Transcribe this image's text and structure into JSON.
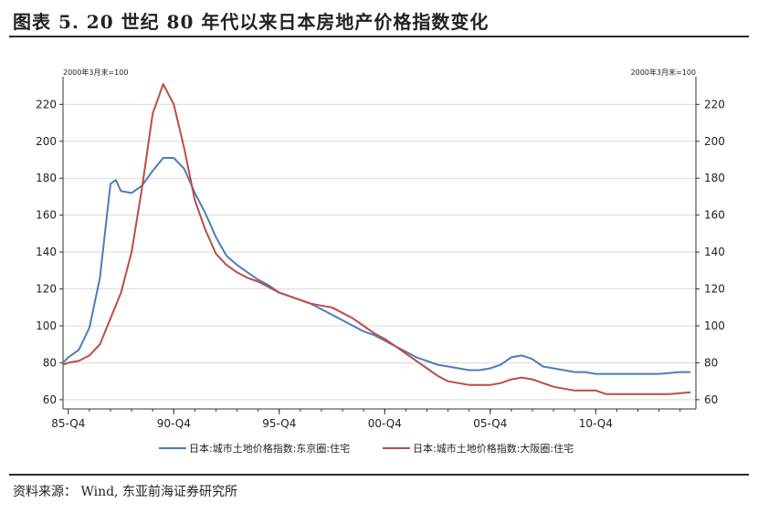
{
  "header": {
    "title": "图表 5.   20 世纪 80 年代以来日本房地产价格指数变化"
  },
  "footer": {
    "source": "资料来源：  Wind,  东亚前海证券研究所"
  },
  "colors": {
    "tokyo": "#4a7ebb",
    "osaka": "#be4b48",
    "grid": "#d9d9d9",
    "axis": "#333333"
  },
  "chart_data": {
    "type": "line",
    "y_unit_left": "2000年3月末=100",
    "y_unit_right": "2000年3月末=100",
    "ylim": [
      55,
      235
    ],
    "yticks": [
      60,
      80,
      100,
      120,
      140,
      160,
      180,
      200,
      220
    ],
    "xlim": [
      1985.5,
      2015.5
    ],
    "xticks": [
      {
        "label": "85-Q4",
        "x": 1985.75
      },
      {
        "label": "90-Q4",
        "x": 1990.75
      },
      {
        "label": "95-Q4",
        "x": 1995.75
      },
      {
        "label": "00-Q4",
        "x": 2000.75
      },
      {
        "label": "05-Q4",
        "x": 2005.75
      },
      {
        "label": "10-Q4",
        "x": 2010.75
      }
    ],
    "grid": true,
    "legend_position": "bottom",
    "series": [
      {
        "name": "日本:城市土地价格指数:东京圈:住宅",
        "color": "#4a7ebb",
        "x": [
          1985.5,
          1985.75,
          1986.25,
          1986.75,
          1987.25,
          1987.75,
          1988.0,
          1988.25,
          1988.75,
          1989.25,
          1989.75,
          1990.25,
          1990.75,
          1991.25,
          1991.75,
          1992.25,
          1992.75,
          1993.25,
          1993.75,
          1994.25,
          1994.75,
          1995.25,
          1995.75,
          1996.25,
          1996.75,
          1997.25,
          1997.75,
          1998.25,
          1998.75,
          1999.25,
          1999.75,
          2000.25,
          2000.75,
          2001.25,
          2001.75,
          2002.25,
          2002.75,
          2003.25,
          2003.75,
          2004.25,
          2004.75,
          2005.25,
          2005.75,
          2006.25,
          2006.75,
          2007.25,
          2007.75,
          2008.25,
          2008.75,
          2009.25,
          2009.75,
          2010.25,
          2010.75,
          2011.25,
          2011.75,
          2012.25,
          2012.75,
          2013.25,
          2013.75,
          2014.25,
          2014.75,
          2015.25
        ],
        "values": [
          80,
          83,
          87,
          99,
          126,
          177,
          179,
          173,
          172,
          176,
          184,
          191,
          191,
          185,
          172,
          161,
          148,
          138,
          133,
          129,
          125,
          122,
          118,
          116,
          114,
          112,
          109,
          106,
          103,
          100,
          97,
          95,
          92,
          89,
          86,
          83,
          81,
          79,
          78,
          77,
          76,
          76,
          77,
          79,
          83,
          84,
          82,
          78,
          77,
          76,
          75,
          75,
          74,
          74,
          74,
          74,
          74,
          74,
          74,
          74.5,
          75,
          75
        ]
      },
      {
        "name": "日本:城市土地价格指数:大阪圈:住宅",
        "color": "#be4b48",
        "x": [
          1985.5,
          1985.75,
          1986.25,
          1986.75,
          1987.25,
          1987.75,
          1988.25,
          1988.75,
          1989.25,
          1989.75,
          1990.25,
          1990.75,
          1991.25,
          1991.75,
          1992.25,
          1992.75,
          1993.25,
          1993.75,
          1994.25,
          1994.75,
          1995.25,
          1995.75,
          1996.25,
          1996.75,
          1997.25,
          1997.75,
          1998.25,
          1998.75,
          1999.25,
          1999.75,
          2000.25,
          2000.75,
          2001.25,
          2001.75,
          2002.25,
          2002.75,
          2003.25,
          2003.75,
          2004.25,
          2004.75,
          2005.25,
          2005.75,
          2006.25,
          2006.75,
          2007.25,
          2007.75,
          2008.25,
          2008.75,
          2009.25,
          2009.75,
          2010.25,
          2010.75,
          2011.25,
          2011.75,
          2012.25,
          2012.75,
          2013.25,
          2013.75,
          2014.25,
          2014.75,
          2015.25
        ],
        "values": [
          79,
          80,
          81,
          84,
          90,
          104,
          118,
          140,
          175,
          215,
          231,
          220,
          196,
          168,
          152,
          139,
          133,
          129,
          126,
          124,
          121,
          118,
          116,
          114,
          112,
          111,
          110,
          107,
          104,
          100,
          96,
          93,
          89,
          85,
          81,
          77,
          73,
          70,
          69,
          68,
          68,
          68,
          69,
          71,
          72,
          71,
          69,
          67,
          66,
          65,
          65,
          65,
          63,
          63,
          63,
          63,
          63,
          63,
          63,
          63.5,
          64
        ]
      }
    ]
  }
}
